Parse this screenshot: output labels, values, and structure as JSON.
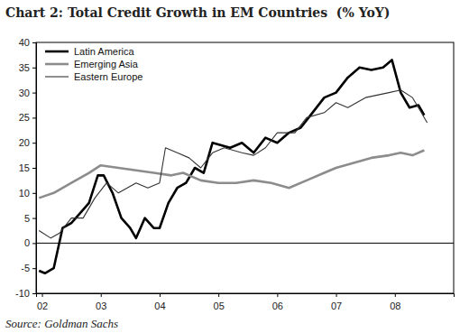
{
  "chart_data": {
    "type": "line",
    "title": "Chart 2: Total Credit Growth in EM Countries  (% YoY)",
    "source": "Source: Goldman Sachs",
    "xlim": [
      2001.9,
      2009.0
    ],
    "xticks": [
      {
        "value": 2002,
        "label": "02"
      },
      {
        "value": 2003,
        "label": "03"
      },
      {
        "value": 2004,
        "label": "04"
      },
      {
        "value": 2005,
        "label": "05"
      },
      {
        "value": 2006,
        "label": "06"
      },
      {
        "value": 2007,
        "label": "07"
      },
      {
        "value": 2008,
        "label": "08"
      }
    ],
    "ylim": [
      -10,
      40
    ],
    "yticks": [
      -10,
      -5,
      0,
      5,
      10,
      15,
      20,
      25,
      30,
      35,
      40
    ],
    "grid": false,
    "legend": "upper left",
    "series": [
      {
        "name": "Latin America",
        "color": "#000000",
        "line_style": "thick",
        "x": [
          2001.95,
          2002.05,
          2002.2,
          2002.35,
          2002.5,
          2002.65,
          2002.8,
          2002.95,
          2003.05,
          2003.2,
          2003.35,
          2003.5,
          2003.6,
          2003.75,
          2003.9,
          2004.0,
          2004.15,
          2004.3,
          2004.45,
          2004.6,
          2004.75,
          2004.9,
          2005.05,
          2005.2,
          2005.4,
          2005.6,
          2005.8,
          2006.0,
          2006.2,
          2006.4,
          2006.6,
          2006.8,
          2007.0,
          2007.2,
          2007.4,
          2007.6,
          2007.8,
          2007.95,
          2008.1,
          2008.25,
          2008.4,
          2008.5
        ],
        "values": [
          -5.5,
          -6,
          -5,
          3,
          4,
          6,
          8,
          13.5,
          13.5,
          10,
          5,
          3,
          1,
          5,
          3,
          3,
          8,
          11,
          12,
          15,
          14,
          20,
          19.5,
          19,
          20,
          18,
          21,
          20,
          22,
          23,
          26,
          29,
          30,
          33,
          35,
          34.5,
          35,
          36.5,
          30,
          27,
          27.5,
          25.5
        ]
      },
      {
        "name": "Emerging Asia",
        "color": "#8c8c8c",
        "line_style": "thick",
        "x": [
          2001.95,
          2002.2,
          2002.5,
          2002.8,
          2003.0,
          2003.3,
          2003.6,
          2003.9,
          2004.2,
          2004.4,
          2004.7,
          2005.0,
          2005.3,
          2005.6,
          2005.9,
          2006.2,
          2006.5,
          2006.8,
          2007.0,
          2007.3,
          2007.6,
          2007.9,
          2008.1,
          2008.3,
          2008.5
        ],
        "values": [
          9,
          10,
          12,
          14,
          15.5,
          15,
          14.5,
          14,
          13.5,
          14,
          12.5,
          12,
          12,
          12.5,
          12,
          11,
          12.5,
          14,
          15,
          16,
          17,
          17.5,
          18,
          17.5,
          18.5
        ]
      },
      {
        "name": "Eastern Europe",
        "color": "#333333",
        "line_style": "thin",
        "x": [
          2001.95,
          2002.15,
          2002.3,
          2002.5,
          2002.7,
          2002.9,
          2003.1,
          2003.3,
          2003.6,
          2003.8,
          2004.0,
          2004.1,
          2004.3,
          2004.5,
          2004.7,
          2004.9,
          2005.1,
          2005.4,
          2005.6,
          2005.8,
          2006.0,
          2006.3,
          2006.5,
          2006.8,
          2007.0,
          2007.2,
          2007.5,
          2007.7,
          2007.9,
          2008.1,
          2008.3,
          2008.45,
          2008.55
        ],
        "values": [
          2.5,
          1,
          2,
          5,
          5,
          9,
          12,
          10,
          12,
          11,
          12,
          19,
          18,
          17,
          15,
          18,
          19,
          18,
          17.5,
          19,
          22,
          22,
          25,
          26,
          28,
          27,
          29,
          29.5,
          30,
          30.5,
          29,
          26,
          24
        ]
      }
    ]
  }
}
